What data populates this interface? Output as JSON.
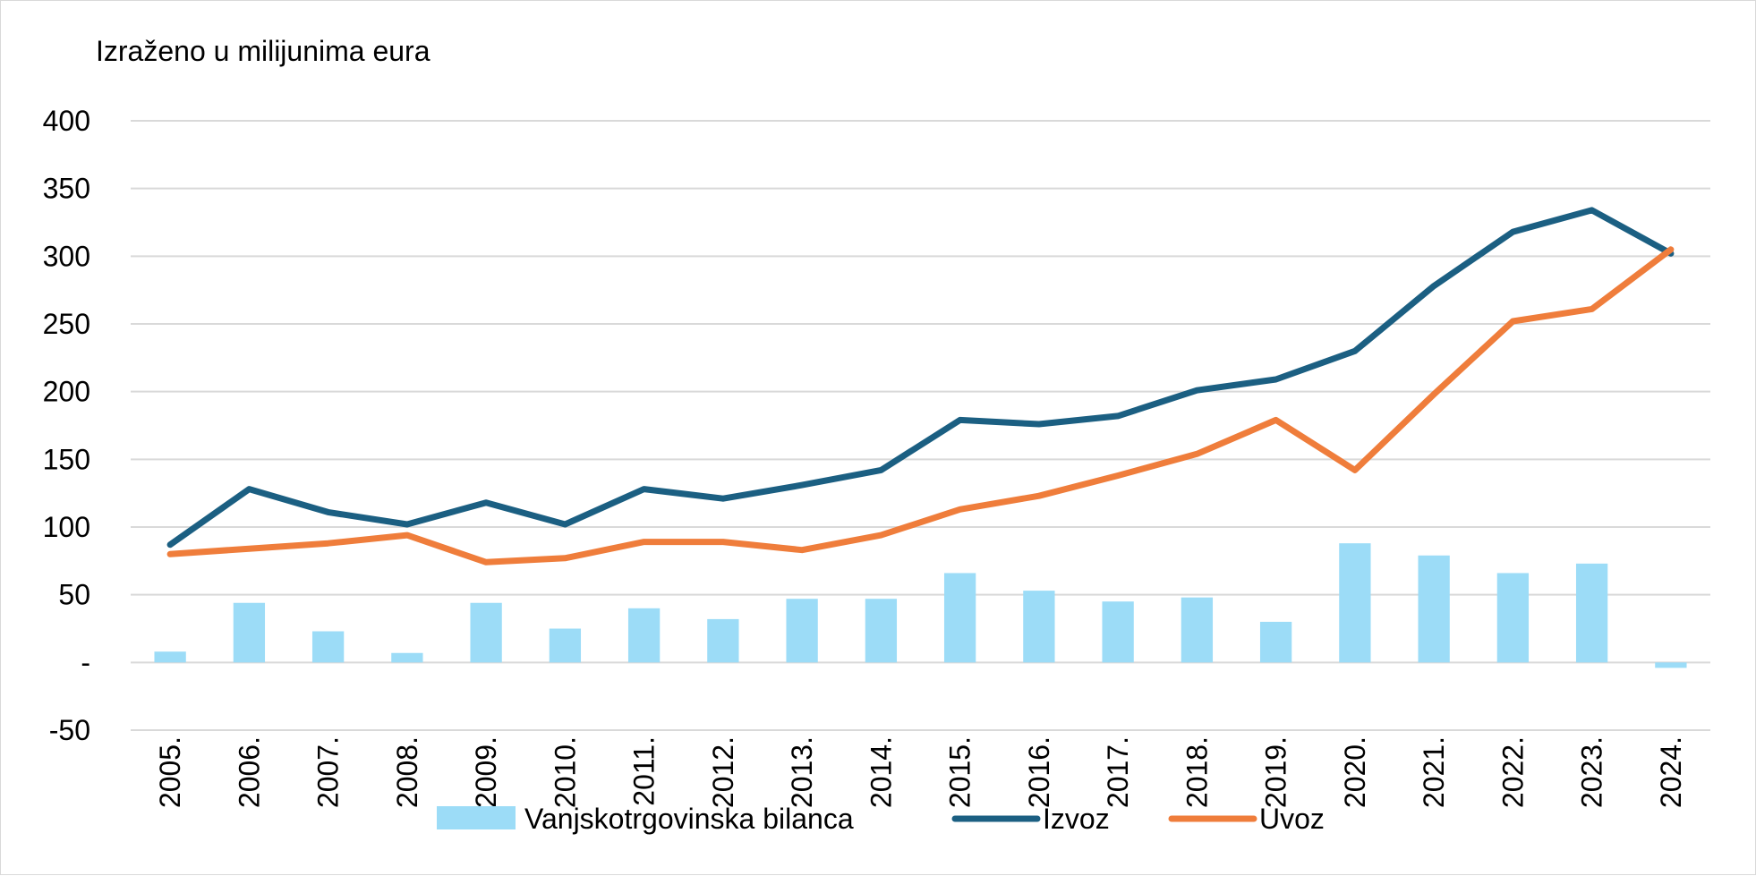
{
  "chart_data": {
    "type": "bar+line",
    "unit_label": "Izraženo u milijunima eura",
    "categories": [
      "2005.",
      "2006.",
      "2007.",
      "2008.",
      "2009.",
      "2010.",
      "2011.",
      "2012.",
      "2013.",
      "2014.",
      "2015.",
      "2016.",
      "2017.",
      "2018.",
      "2019.",
      "2020.",
      "2021.",
      "2022.",
      "2023.",
      "2024."
    ],
    "ylim": [
      -50,
      400
    ],
    "yticks": [
      {
        "value": 400,
        "label": "400"
      },
      {
        "value": 350,
        "label": "350"
      },
      {
        "value": 300,
        "label": "300"
      },
      {
        "value": 250,
        "label": "250"
      },
      {
        "value": 200,
        "label": "200"
      },
      {
        "value": 150,
        "label": "150"
      },
      {
        "value": 100,
        "label": "100"
      },
      {
        "value": 50,
        "label": "50"
      },
      {
        "value": 0,
        "label": "-"
      },
      {
        "value": -50,
        "label": "-50"
      }
    ],
    "grid": true,
    "legend_position": "bottom",
    "series": [
      {
        "name": "Vanjskotrgovinska bilanca",
        "kind": "bar",
        "color": "#9cdcf7",
        "values": [
          8,
          44,
          23,
          7,
          44,
          25,
          40,
          32,
          47,
          47,
          66,
          53,
          45,
          48,
          30,
          88,
          79,
          66,
          73,
          -4
        ]
      },
      {
        "name": "Izvoz",
        "kind": "line",
        "color": "#1b5f82",
        "values": [
          87,
          128,
          111,
          102,
          118,
          102,
          128,
          121,
          131,
          142,
          179,
          176,
          182,
          201,
          209,
          230,
          278,
          318,
          334,
          302
        ]
      },
      {
        "name": "Uvoz",
        "kind": "line",
        "color": "#ef7d3b",
        "values": [
          80,
          84,
          88,
          94,
          74,
          77,
          89,
          89,
          83,
          94,
          113,
          123,
          138,
          154,
          179,
          142,
          198,
          252,
          261,
          305
        ]
      }
    ]
  }
}
